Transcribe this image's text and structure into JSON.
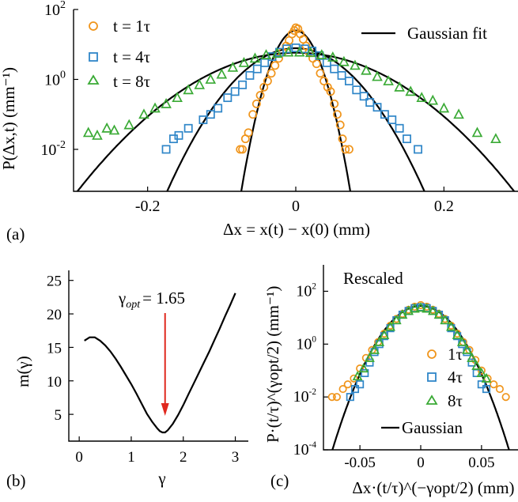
{
  "panel_labels": {
    "a": "(a)",
    "b": "(b)",
    "c": "(c)"
  },
  "colors": {
    "t1": "#f0951c",
    "t4": "#2f86c8",
    "t8": "#3aaa35",
    "arrow": "#e0281e",
    "fit": "#000000"
  },
  "chart_data": [
    {
      "panel": "(a)",
      "type": "scatter",
      "ylabel": "P(Δx,t) (mm⁻¹)",
      "xlabel": "Δx = x(t) − x(0) (mm)",
      "xlim": [
        -0.3,
        0.3
      ],
      "ylim_log10": [
        -3.2,
        2
      ],
      "y_scale": "log",
      "xticks": [
        -0.2,
        0,
        0.2
      ],
      "xtick_labels": [
        "-0.2",
        "0",
        "0.2"
      ],
      "yticks_log10": [
        -2,
        0,
        2
      ],
      "ytick_labels": [
        "10",
        "10",
        "10"
      ],
      "ytick_exponents": [
        "-2",
        "0",
        "2"
      ],
      "legend": [
        "t = 1τ",
        "t = 4τ",
        "t = 8τ",
        "Gaussian fit"
      ],
      "legend_placement": "top (split left/right)",
      "series": [
        {
          "name": "t = 1τ",
          "marker": "circle",
          "points": [
            [
              -0.075,
              0.01
            ],
            [
              -0.072,
              0.01
            ],
            [
              -0.068,
              0.02
            ],
            [
              -0.064,
              0.03
            ],
            [
              -0.058,
              0.1
            ],
            [
              -0.053,
              0.2
            ],
            [
              -0.048,
              0.35
            ],
            [
              -0.043,
              0.6
            ],
            [
              -0.038,
              0.9
            ],
            [
              -0.033,
              1.5
            ],
            [
              -0.028,
              2.5
            ],
            [
              -0.023,
              4
            ],
            [
              -0.018,
              6
            ],
            [
              -0.013,
              9
            ],
            [
              -0.009,
              13
            ],
            [
              -0.005,
              20
            ],
            [
              -0.002,
              25
            ],
            [
              0,
              30
            ],
            [
              0.003,
              28
            ],
            [
              0.006,
              20
            ],
            [
              0.01,
              14
            ],
            [
              0.014,
              9
            ],
            [
              0.018,
              6
            ],
            [
              0.023,
              4
            ],
            [
              0.028,
              2.8
            ],
            [
              0.033,
              1.5
            ],
            [
              0.038,
              0.9
            ],
            [
              0.043,
              0.6
            ],
            [
              0.047,
              0.45
            ],
            [
              0.052,
              0.2
            ],
            [
              0.056,
              0.1
            ],
            [
              0.06,
              0.05
            ],
            [
              0.063,
              0.02
            ],
            [
              0.067,
              0.01
            ],
            [
              0.072,
              0.01
            ]
          ]
        },
        {
          "name": "t = 4τ",
          "marker": "square",
          "points": [
            [
              -0.175,
              0.01
            ],
            [
              -0.165,
              0.02
            ],
            [
              -0.158,
              0.025
            ],
            [
              -0.145,
              0.04
            ],
            [
              -0.125,
              0.07
            ],
            [
              -0.115,
              0.1
            ],
            [
              -0.105,
              0.15
            ],
            [
              -0.092,
              0.3
            ],
            [
              -0.082,
              0.45
            ],
            [
              -0.072,
              0.7
            ],
            [
              -0.062,
              1.3
            ],
            [
              -0.052,
              2
            ],
            [
              -0.042,
              3
            ],
            [
              -0.032,
              4.5
            ],
            [
              -0.022,
              6
            ],
            [
              -0.012,
              7.5
            ],
            [
              0,
              8
            ],
            [
              0.012,
              7.5
            ],
            [
              0.022,
              6.5
            ],
            [
              0.032,
              4.8
            ],
            [
              0.042,
              3
            ],
            [
              0.052,
              2
            ],
            [
              0.062,
              1.3
            ],
            [
              0.072,
              0.9
            ],
            [
              0.082,
              0.5
            ],
            [
              0.092,
              0.33
            ],
            [
              0.1,
              0.22
            ],
            [
              0.11,
              0.16
            ],
            [
              0.12,
              0.1
            ],
            [
              0.13,
              0.07
            ],
            [
              0.14,
              0.04
            ],
            [
              0.15,
              0.02
            ],
            [
              0.165,
              0.01
            ]
          ]
        },
        {
          "name": "t = 8τ",
          "marker": "triangle",
          "points": [
            [
              -0.28,
              0.03
            ],
            [
              -0.268,
              0.025
            ],
            [
              -0.255,
              0.04
            ],
            [
              -0.245,
              0.035
            ],
            [
              -0.225,
              0.05
            ],
            [
              -0.205,
              0.1
            ],
            [
              -0.19,
              0.15
            ],
            [
              -0.175,
              0.2
            ],
            [
              -0.16,
              0.3
            ],
            [
              -0.145,
              0.5
            ],
            [
              -0.13,
              0.7
            ],
            [
              -0.115,
              1
            ],
            [
              -0.1,
              1.4
            ],
            [
              -0.085,
              2.2
            ],
            [
              -0.07,
              3
            ],
            [
              -0.055,
              4
            ],
            [
              -0.04,
              5
            ],
            [
              -0.025,
              5.5
            ],
            [
              -0.01,
              6
            ],
            [
              0.005,
              6
            ],
            [
              0.02,
              5.8
            ],
            [
              0.035,
              5
            ],
            [
              0.05,
              4.3
            ],
            [
              0.065,
              3.2
            ],
            [
              0.08,
              2.5
            ],
            [
              0.095,
              1.8
            ],
            [
              0.11,
              1.2
            ],
            [
              0.125,
              0.9
            ],
            [
              0.14,
              0.6
            ],
            [
              0.155,
              0.45
            ],
            [
              0.17,
              0.3
            ],
            [
              0.185,
              0.25
            ],
            [
              0.2,
              0.15
            ],
            [
              0.22,
              0.1
            ],
            [
              0.245,
              0.03
            ],
            [
              0.27,
              0.02
            ]
          ]
        }
      ],
      "fits": [
        {
          "peak": 25,
          "sigma": 0.016
        },
        {
          "peak": 7.8,
          "sigma": 0.04
        },
        {
          "peak": 5.8,
          "sigma": 0.069
        }
      ]
    },
    {
      "panel": "(b)",
      "type": "line",
      "ylabel": "m(γ)",
      "xlabel": "γ",
      "xlim": [
        -0.2,
        3.25
      ],
      "ylim": [
        1,
        26.5
      ],
      "xticks": [
        0,
        1,
        2,
        3
      ],
      "xtick_labels": [
        "0",
        "1",
        "2",
        "3"
      ],
      "yticks": [
        5,
        10,
        15,
        20,
        25
      ],
      "ytick_labels": [
        "5",
        "10",
        "15",
        "20",
        "25"
      ],
      "annotation": {
        "label": "γopt",
        "equals": "= 1.65",
        "x": 1.65
      },
      "series": [
        {
          "x": [
            0.1,
            0.2,
            0.3,
            0.4,
            0.5,
            0.6,
            0.7,
            0.8,
            0.9,
            1.0,
            1.1,
            1.2,
            1.3,
            1.4,
            1.5,
            1.55,
            1.6,
            1.65,
            1.7,
            1.8,
            1.9,
            2.0,
            2.1,
            2.2,
            2.3,
            2.4,
            2.5,
            2.6,
            2.7,
            2.8,
            2.9,
            3.0
          ],
          "y": [
            16.0,
            16.5,
            16.5,
            16.0,
            15.3,
            14.4,
            13.3,
            12.1,
            10.8,
            9.5,
            8.1,
            6.6,
            5.1,
            3.9,
            2.9,
            2.5,
            2.3,
            2.3,
            2.6,
            3.6,
            4.9,
            6.4,
            8.0,
            9.6,
            11.2,
            12.8,
            14.4,
            16.1,
            17.8,
            19.6,
            21.3,
            23.1
          ]
        }
      ]
    },
    {
      "panel": "(c)",
      "type": "scatter",
      "title": "Rescaled",
      "ylabel": "P·(t/τ)^(γopt/2) (mm⁻¹)",
      "xlabel": "Δx·(t/τ)^(−γopt/2) (mm)",
      "xlim": [
        -0.08,
        0.08
      ],
      "ylim_log10": [
        -4,
        3
      ],
      "y_scale": "log",
      "xticks": [
        -0.05,
        0,
        0.05
      ],
      "xtick_labels": [
        "-0.05",
        "0",
        "0.05"
      ],
      "yticks_log10": [
        -4,
        -2,
        0,
        2
      ],
      "ytick_labels": [
        "10",
        "10",
        "10",
        "10"
      ],
      "ytick_exponents": [
        "-4",
        "-2",
        "0",
        "2"
      ],
      "legend": [
        "1τ",
        "4τ",
        "8τ",
        "Gaussian"
      ],
      "legend_placement": "right",
      "series": [
        {
          "name": "1τ",
          "marker": "circle",
          "points": [
            [
              -0.073,
              0.01
            ],
            [
              -0.069,
              0.01
            ],
            [
              -0.064,
              0.02
            ],
            [
              -0.06,
              0.03
            ],
            [
              -0.055,
              0.05
            ],
            [
              -0.05,
              0.12
            ],
            [
              -0.045,
              0.3
            ],
            [
              -0.04,
              0.6
            ],
            [
              -0.035,
              1.2
            ],
            [
              -0.03,
              2.5
            ],
            [
              -0.025,
              5
            ],
            [
              -0.02,
              9
            ],
            [
              -0.015,
              14
            ],
            [
              -0.01,
              20
            ],
            [
              -0.005,
              26
            ],
            [
              0,
              30
            ],
            [
              0.005,
              26
            ],
            [
              0.01,
              20
            ],
            [
              0.015,
              14
            ],
            [
              0.02,
              9
            ],
            [
              0.025,
              5
            ],
            [
              0.03,
              2.5
            ],
            [
              0.035,
              1.2
            ],
            [
              0.04,
              0.6
            ],
            [
              0.045,
              0.25
            ],
            [
              0.05,
              0.1
            ],
            [
              0.055,
              0.05
            ],
            [
              0.06,
              0.03
            ],
            [
              0.065,
              0.02
            ],
            [
              0.07,
              0.01
            ]
          ]
        },
        {
          "name": "4τ",
          "marker": "square",
          "points": [
            [
              -0.058,
              0.01
            ],
            [
              -0.054,
              0.02
            ],
            [
              -0.05,
              0.03
            ],
            [
              -0.046,
              0.08
            ],
            [
              -0.042,
              0.2
            ],
            [
              -0.038,
              0.5
            ],
            [
              -0.034,
              1
            ],
            [
              -0.03,
              2
            ],
            [
              -0.025,
              4
            ],
            [
              -0.02,
              8
            ],
            [
              -0.015,
              13
            ],
            [
              -0.01,
              18
            ],
            [
              -0.005,
              23
            ],
            [
              0,
              25
            ],
            [
              0.005,
              23
            ],
            [
              0.01,
              18
            ],
            [
              0.015,
              13
            ],
            [
              0.02,
              8
            ],
            [
              0.025,
              4
            ],
            [
              0.03,
              2
            ],
            [
              0.034,
              1
            ],
            [
              0.038,
              0.5
            ],
            [
              0.042,
              0.2
            ],
            [
              0.046,
              0.08
            ],
            [
              0.05,
              0.03
            ],
            [
              0.054,
              0.02
            ]
          ]
        },
        {
          "name": "8τ",
          "marker": "triangle",
          "points": [
            [
              -0.052,
              0.06
            ],
            [
              -0.047,
              0.12
            ],
            [
              -0.042,
              0.3
            ],
            [
              -0.038,
              0.6
            ],
            [
              -0.034,
              1.2
            ],
            [
              -0.03,
              2.2
            ],
            [
              -0.025,
              4.5
            ],
            [
              -0.02,
              8
            ],
            [
              -0.015,
              13
            ],
            [
              -0.01,
              18
            ],
            [
              -0.005,
              22
            ],
            [
              0,
              24
            ],
            [
              0.005,
              22
            ],
            [
              0.01,
              18
            ],
            [
              0.015,
              13
            ],
            [
              0.02,
              8
            ],
            [
              0.025,
              4.5
            ],
            [
              0.03,
              2.2
            ],
            [
              0.034,
              1.2
            ],
            [
              0.038,
              0.6
            ],
            [
              0.042,
              0.3
            ],
            [
              0.046,
              0.15
            ],
            [
              0.05,
              0.08
            ],
            [
              0.054,
              0.05
            ]
          ]
        }
      ],
      "fits": [
        {
          "peak": 28,
          "sigma": 0.0145
        }
      ]
    }
  ]
}
